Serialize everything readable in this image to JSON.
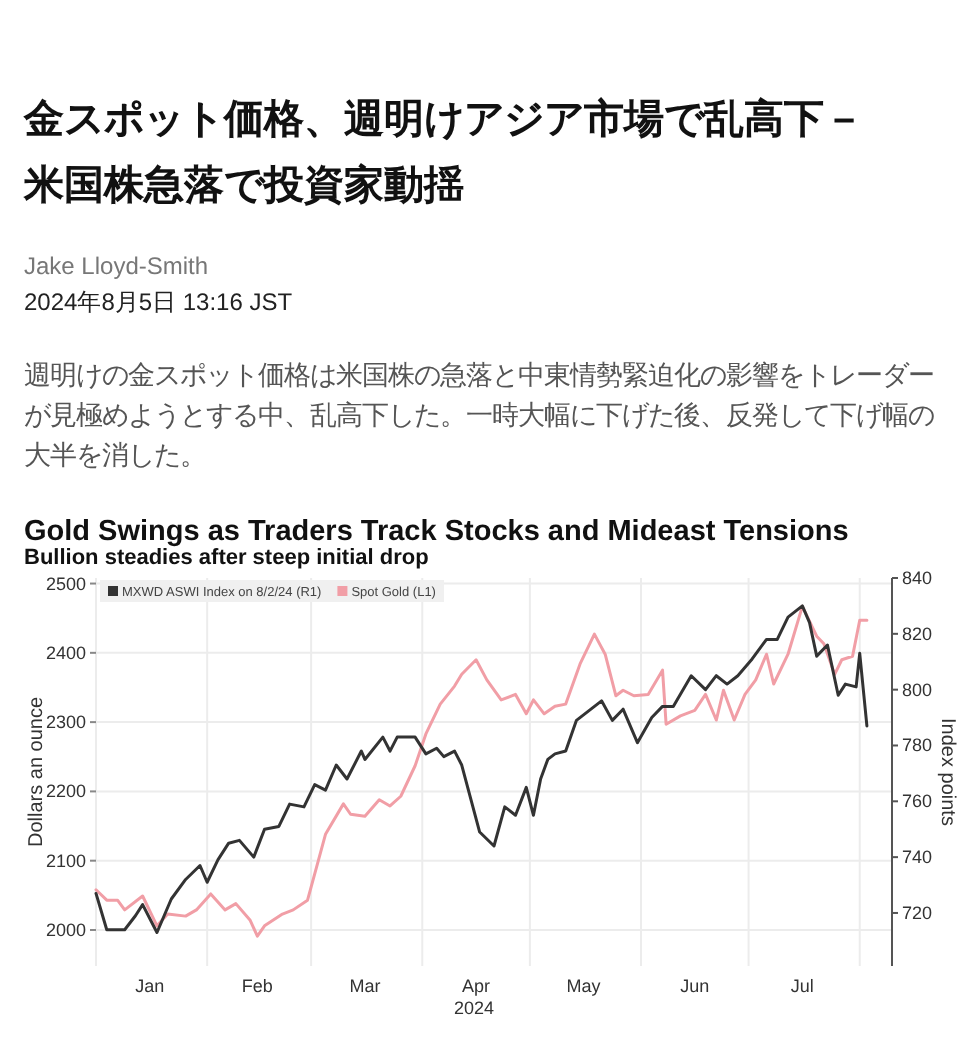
{
  "chart_data": {
    "type": "line",
    "title": "Gold Swings as Traders Track Stocks and Mideast Tensions",
    "subtitle": "Bullion steadies after steep initial drop",
    "annotations": [
      "金スポット価格、週明けアジア市場で乱高下－米国株急落で投資家動揺",
      "Jake Lloyd-Smith",
      "2024年8月5日 13:16 JST",
      "週明けの金スポット価格は米国株の急落と中東情勢緊迫化の影響をトレーダーが見極めようとする中、乱高下した。一時大幅に下げた後、反発して下げ幅の大半を消した。"
    ],
    "xlabel": "2024",
    "ylabel": "Dollars an ounce",
    "y2label": "Index points",
    "xlim": [
      "2024-01-01",
      "2024-08-10"
    ],
    "xticks": [
      {
        "value": "2024-01-01",
        "label": null
      },
      {
        "value": "2024-01-16",
        "label": "Jan"
      },
      {
        "value": "2024-02-01",
        "label": null
      },
      {
        "value": "2024-02-15",
        "label": "Feb"
      },
      {
        "value": "2024-03-01",
        "label": null
      },
      {
        "value": "2024-03-16",
        "label": "Mar"
      },
      {
        "value": "2024-04-01",
        "label": null
      },
      {
        "value": "2024-04-16",
        "label": "Apr"
      },
      {
        "value": "2024-05-01",
        "label": null
      },
      {
        "value": "2024-05-16",
        "label": "May"
      },
      {
        "value": "2024-06-01",
        "label": null
      },
      {
        "value": "2024-06-16",
        "label": "Jun"
      },
      {
        "value": "2024-07-01",
        "label": null
      },
      {
        "value": "2024-07-16",
        "label": "Jul"
      },
      {
        "value": "2024-08-01",
        "label": null
      }
    ],
    "ylim": [
      1948,
      2508
    ],
    "yticks": [
      2000,
      2100,
      2200,
      2300,
      2400,
      2500
    ],
    "y2lim": [
      701,
      840
    ],
    "y2ticks": [
      720,
      740,
      760,
      780,
      800,
      820,
      840
    ],
    "grid": true,
    "legend": "top left",
    "series": [
      {
        "name": "MXWD ASWI Index on 8/2/24 (R1)",
        "color": "#333333",
        "axis": "y2",
        "x": [
          "2024-01-01",
          "2024-01-04",
          "2024-01-09",
          "2024-01-12",
          "2024-01-14",
          "2024-01-18",
          "2024-01-22",
          "2024-01-26",
          "2024-01-30",
          "2024-02-01",
          "2024-02-04",
          "2024-02-07",
          "2024-02-10",
          "2024-02-14",
          "2024-02-17",
          "2024-02-21",
          "2024-02-24",
          "2024-02-28",
          "2024-03-02",
          "2024-03-05",
          "2024-03-08",
          "2024-03-11",
          "2024-03-15",
          "2024-03-16",
          "2024-03-21",
          "2024-03-23",
          "2024-03-25",
          "2024-03-30",
          "2024-04-02",
          "2024-04-05",
          "2024-04-07",
          "2024-04-10",
          "2024-04-12",
          "2024-04-17",
          "2024-04-21",
          "2024-04-24",
          "2024-04-27",
          "2024-04-30",
          "2024-05-02",
          "2024-05-04",
          "2024-05-06",
          "2024-05-08",
          "2024-05-11",
          "2024-05-14",
          "2024-05-21",
          "2024-05-24",
          "2024-05-27",
          "2024-05-31",
          "2024-06-04",
          "2024-06-07",
          "2024-06-10",
          "2024-06-15",
          "2024-06-19",
          "2024-06-22",
          "2024-06-25",
          "2024-06-28",
          "2024-07-02",
          "2024-07-06",
          "2024-07-09",
          "2024-07-12",
          "2024-07-16",
          "2024-07-18",
          "2024-07-20",
          "2024-07-23",
          "2024-07-26",
          "2024-07-28",
          "2024-07-31",
          "2024-08-01",
          "2024-08-03"
        ],
        "values": [
          727,
          714,
          714,
          719,
          723,
          713,
          725,
          732,
          737,
          731,
          739,
          745,
          746,
          740,
          750,
          751,
          759,
          758,
          766,
          764,
          773,
          768,
          778,
          775,
          783,
          778,
          783,
          783,
          777,
          779,
          776,
          778,
          773,
          749,
          744,
          758,
          755,
          765,
          755,
          768,
          775,
          777,
          778,
          789,
          796,
          789,
          793,
          781,
          790,
          794,
          794,
          805,
          800,
          805,
          802,
          805,
          811,
          818,
          818,
          826,
          830,
          824,
          812,
          816,
          798,
          802,
          801,
          813,
          787
        ]
      },
      {
        "name": "Spot Gold (L1)",
        "color": "#f19ea6",
        "axis": "y",
        "x": [
          "2024-01-01",
          "2024-01-04",
          "2024-01-07",
          "2024-01-09",
          "2024-01-14",
          "2024-01-18",
          "2024-01-21",
          "2024-01-26",
          "2024-01-29",
          "2024-02-02",
          "2024-02-06",
          "2024-02-09",
          "2024-02-13",
          "2024-02-15",
          "2024-02-17",
          "2024-02-22",
          "2024-02-25",
          "2024-02-29",
          "2024-03-02",
          "2024-03-05",
          "2024-03-10",
          "2024-03-12",
          "2024-03-16",
          "2024-03-20",
          "2024-03-23",
          "2024-03-26",
          "2024-03-30",
          "2024-04-02",
          "2024-04-06",
          "2024-04-10",
          "2024-04-12",
          "2024-04-16",
          "2024-04-19",
          "2024-04-23",
          "2024-04-27",
          "2024-04-30",
          "2024-05-02",
          "2024-05-05",
          "2024-05-08",
          "2024-05-11",
          "2024-05-15",
          "2024-05-19",
          "2024-05-22",
          "2024-05-25",
          "2024-05-27",
          "2024-05-30",
          "2024-06-03",
          "2024-06-07",
          "2024-06-08",
          "2024-06-12",
          "2024-06-16",
          "2024-06-19",
          "2024-06-22",
          "2024-06-24",
          "2024-06-27",
          "2024-06-30",
          "2024-07-03",
          "2024-07-06",
          "2024-07-08",
          "2024-07-12",
          "2024-07-16",
          "2024-07-20",
          "2024-07-22",
          "2024-07-25",
          "2024-07-27",
          "2024-07-30",
          "2024-08-01",
          "2024-08-03"
        ],
        "values": [
          2058,
          2043,
          2043,
          2029,
          2049,
          2006,
          2023,
          2020,
          2029,
          2052,
          2029,
          2038,
          2014,
          1991,
          2006,
          2023,
          2029,
          2043,
          2081,
          2138,
          2182,
          2167,
          2164,
          2188,
          2179,
          2193,
          2237,
          2283,
          2326,
          2352,
          2369,
          2390,
          2361,
          2332,
          2340,
          2312,
          2332,
          2312,
          2323,
          2326,
          2384,
          2427,
          2398,
          2338,
          2346,
          2338,
          2340,
          2375,
          2297,
          2309,
          2317,
          2340,
          2303,
          2346,
          2303,
          2340,
          2361,
          2398,
          2355,
          2398,
          2467,
          2424,
          2413,
          2369,
          2390,
          2395,
          2447,
          2447
        ]
      }
    ]
  }
}
